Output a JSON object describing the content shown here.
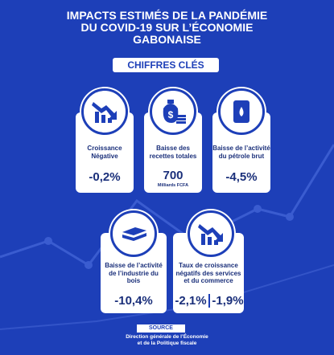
{
  "header": {
    "title_lines": [
      "IMPACTS ESTIMÉS DE LA PANDÉMIE",
      "DU COVID-19 SUR L’ÉCONOMIE",
      "GABONAISE"
    ],
    "badge": "CHIFFRES CLÉS"
  },
  "cards": [
    {
      "label_lines": [
        "Croissance",
        "Négative"
      ],
      "values": [
        "-0,2%"
      ]
    },
    {
      "label_lines": [
        "Baisse des",
        "recettes totales"
      ],
      "values": [
        "700"
      ],
      "unit": "Milliards FCFA"
    },
    {
      "label_lines": [
        "Baisse de l’activité",
        "du pétrole brut"
      ],
      "values": [
        "-4,5%"
      ]
    },
    {
      "label_lines": [
        "Baisse de l’activité",
        "de l’industrie du",
        "bois"
      ],
      "values": [
        "-10,4%"
      ]
    },
    {
      "label_lines": [
        "Taux de croissance",
        "négatifs des services",
        "et du commerce"
      ],
      "values": [
        "-2,1%",
        "-1,9%"
      ]
    }
  ],
  "source": {
    "label": "SOURCE",
    "lines": [
      "Direction générale de l’Économie",
      "et de la Politique fiscale"
    ]
  }
}
